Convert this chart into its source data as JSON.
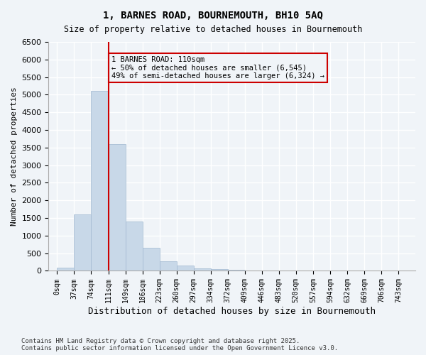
{
  "title1": "1, BARNES ROAD, BOURNEMOUTH, BH10 5AQ",
  "title2": "Size of property relative to detached houses in Bournemouth",
  "xlabel": "Distribution of detached houses by size in Bournemouth",
  "ylabel": "Number of detached properties",
  "bar_labels": [
    "0sqm",
    "37sqm",
    "74sqm",
    "111sqm",
    "149sqm",
    "186sqm",
    "223sqm",
    "260sqm",
    "297sqm",
    "334sqm",
    "372sqm",
    "409sqm",
    "446sqm",
    "483sqm",
    "520sqm",
    "557sqm",
    "594sqm",
    "632sqm",
    "669sqm",
    "706sqm",
    "743sqm"
  ],
  "bar_values": [
    100,
    1600,
    5100,
    3600,
    1400,
    650,
    280,
    150,
    80,
    50,
    20,
    10,
    5,
    3,
    2,
    1,
    1,
    0,
    0,
    0,
    0
  ],
  "bar_color": "#c8d8e8",
  "bar_edge_color": "#a0b8d0",
  "vline_x": 3,
  "vline_color": "#cc0000",
  "annotation_text": "1 BARNES ROAD: 110sqm\n← 50% of detached houses are smaller (6,545)\n49% of semi-detached houses are larger (6,324) →",
  "annotation_box_color": "#cc0000",
  "ylim": [
    0,
    6500
  ],
  "yticks": [
    0,
    500,
    1000,
    1500,
    2000,
    2500,
    3000,
    3500,
    4000,
    4500,
    5000,
    5500,
    6000,
    6500
  ],
  "footer1": "Contains HM Land Registry data © Crown copyright and database right 2025.",
  "footer2": "Contains public sector information licensed under the Open Government Licence v3.0.",
  "bg_color": "#f0f4f8",
  "grid_color": "#ffffff"
}
